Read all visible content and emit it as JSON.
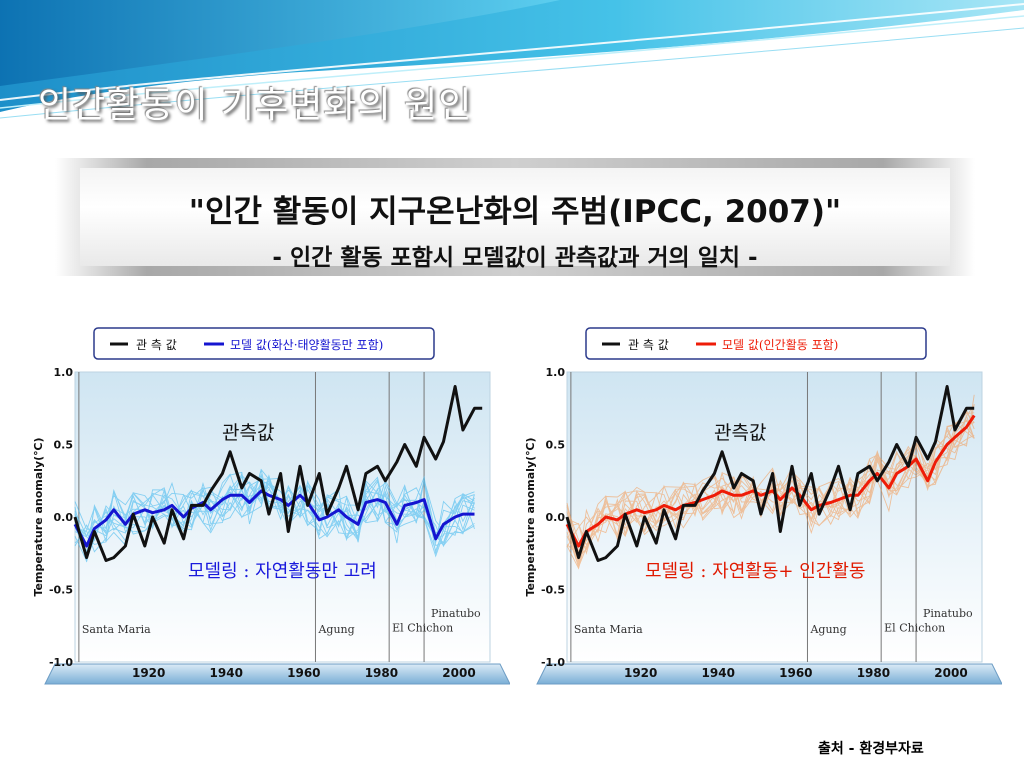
{
  "slide": {
    "title": "인간활동이 기후변화의 원인",
    "banner_line1": "\"인간 활동이 지구온난화의 주범(IPCC, 2007)\"",
    "banner_line2": "- 인간 활동 포함시 모델값이 관측값과 거의 일치 -",
    "source": "출처 - 환경부자료"
  },
  "colors": {
    "observed": "#111111",
    "model_natural": "#1515d0",
    "model_natural_runs": "#35b4ee",
    "model_all": "#ee1c08",
    "model_all_runs": "#f49850"
  },
  "chart_data": [
    {
      "type": "line",
      "legend": [
        "관 측 값",
        "모델 값(화산·태양활동만 포함)"
      ],
      "ylabel": "Temperature anomaly(℃)",
      "ylim": [
        -1.0,
        1.0
      ],
      "xlim": [
        1901,
        2008
      ],
      "x_ticks": [
        "1920",
        "1940",
        "1960",
        "1980",
        "2000"
      ],
      "y_ticks": [
        "1.0",
        "0.5",
        "0.0",
        "-0.5",
        "-1.0"
      ],
      "annotations": {
        "observed": "관측값",
        "model": "모델링 : 자연활동만 고려"
      },
      "volcano_labels": [
        "Santa Maria",
        "Agung",
        "El Chichon",
        "Pinatubo"
      ],
      "series": [
        {
          "name": "관 측 값",
          "x": [
            1901,
            1904,
            1906,
            1909,
            1911,
            1914,
            1916,
            1919,
            1921,
            1924,
            1926,
            1929,
            1931,
            1934,
            1936,
            1939,
            1941,
            1944,
            1946,
            1949,
            1951,
            1954,
            1956,
            1959,
            1961,
            1964,
            1966,
            1969,
            1971,
            1974,
            1976,
            1979,
            1981,
            1984,
            1986,
            1989,
            1991,
            1994,
            1996,
            1999,
            2001,
            2004,
            2006
          ],
          "values": [
            0.0,
            -0.28,
            -0.1,
            -0.3,
            -0.28,
            -0.2,
            0.02,
            -0.2,
            0.0,
            -0.18,
            0.05,
            -0.15,
            0.08,
            0.08,
            0.18,
            0.3,
            0.45,
            0.2,
            0.3,
            0.25,
            0.02,
            0.3,
            -0.1,
            0.35,
            0.08,
            0.3,
            0.02,
            0.2,
            0.35,
            0.05,
            0.3,
            0.35,
            0.25,
            0.38,
            0.5,
            0.35,
            0.55,
            0.4,
            0.52,
            0.9,
            0.6,
            0.75,
            0.75
          ]
        },
        {
          "name": "모델 값(화산·태양활동만 포함)",
          "x": [
            1901,
            1904,
            1906,
            1909,
            1911,
            1914,
            1916,
            1919,
            1921,
            1924,
            1926,
            1929,
            1931,
            1934,
            1936,
            1939,
            1941,
            1944,
            1946,
            1949,
            1951,
            1954,
            1956,
            1959,
            1961,
            1964,
            1966,
            1969,
            1971,
            1974,
            1976,
            1979,
            1981,
            1984,
            1986,
            1989,
            1991,
            1994,
            1996,
            1999,
            2001,
            2004
          ],
          "values": [
            -0.05,
            -0.2,
            -0.08,
            -0.02,
            0.05,
            -0.05,
            0.02,
            0.05,
            0.03,
            0.05,
            0.08,
            0.0,
            0.06,
            0.1,
            0.05,
            0.12,
            0.15,
            0.15,
            0.1,
            0.18,
            0.15,
            0.12,
            0.08,
            0.15,
            0.1,
            -0.02,
            0.0,
            0.05,
            0.0,
            -0.05,
            0.1,
            0.12,
            0.1,
            -0.05,
            0.08,
            0.1,
            0.12,
            -0.15,
            -0.05,
            0.0,
            0.02,
            0.02
          ]
        }
      ]
    },
    {
      "type": "line",
      "legend": [
        "관 측 값",
        "모델 값(인간활동 포함)"
      ],
      "ylabel": "Temperature anomaly(℃)",
      "ylim": [
        -1.0,
        1.0
      ],
      "xlim": [
        1901,
        2008
      ],
      "x_ticks": [
        "1920",
        "1940",
        "1960",
        "1980",
        "2000"
      ],
      "y_ticks": [
        "1.0",
        "0.5",
        "0.0",
        "-0.5",
        "-1.0"
      ],
      "annotations": {
        "observed": "관측값",
        "model": "모델링 : 자연활동+ 인간활동"
      },
      "volcano_labels": [
        "Santa Maria",
        "Agung",
        "El Chichon",
        "Pinatubo"
      ],
      "series": [
        {
          "name": "관 측 값",
          "x": [
            1901,
            1904,
            1906,
            1909,
            1911,
            1914,
            1916,
            1919,
            1921,
            1924,
            1926,
            1929,
            1931,
            1934,
            1936,
            1939,
            1941,
            1944,
            1946,
            1949,
            1951,
            1954,
            1956,
            1959,
            1961,
            1964,
            1966,
            1969,
            1971,
            1974,
            1976,
            1979,
            1981,
            1984,
            1986,
            1989,
            1991,
            1994,
            1996,
            1999,
            2001,
            2004,
            2006
          ],
          "values": [
            0.0,
            -0.28,
            -0.1,
            -0.3,
            -0.28,
            -0.2,
            0.02,
            -0.2,
            0.0,
            -0.18,
            0.05,
            -0.15,
            0.08,
            0.08,
            0.18,
            0.3,
            0.45,
            0.2,
            0.3,
            0.25,
            0.02,
            0.3,
            -0.1,
            0.35,
            0.08,
            0.3,
            0.02,
            0.2,
            0.35,
            0.05,
            0.3,
            0.35,
            0.25,
            0.38,
            0.5,
            0.35,
            0.55,
            0.4,
            0.52,
            0.9,
            0.6,
            0.75,
            0.75
          ]
        },
        {
          "name": "모델 값(인간활동 포함)",
          "x": [
            1901,
            1904,
            1906,
            1909,
            1911,
            1914,
            1916,
            1919,
            1921,
            1924,
            1926,
            1929,
            1931,
            1934,
            1936,
            1939,
            1941,
            1944,
            1946,
            1949,
            1951,
            1954,
            1956,
            1959,
            1961,
            1964,
            1966,
            1969,
            1971,
            1974,
            1976,
            1979,
            1981,
            1984,
            1986,
            1989,
            1991,
            1994,
            1996,
            1999,
            2001,
            2004,
            2006
          ],
          "values": [
            -0.05,
            -0.2,
            -0.1,
            -0.05,
            0.0,
            -0.02,
            0.02,
            0.05,
            0.03,
            0.05,
            0.08,
            0.05,
            0.08,
            0.1,
            0.12,
            0.15,
            0.18,
            0.15,
            0.15,
            0.18,
            0.15,
            0.18,
            0.12,
            0.2,
            0.15,
            0.05,
            0.08,
            0.1,
            0.12,
            0.15,
            0.15,
            0.25,
            0.3,
            0.2,
            0.3,
            0.35,
            0.4,
            0.25,
            0.38,
            0.5,
            0.55,
            0.62,
            0.7
          ]
        }
      ]
    }
  ]
}
